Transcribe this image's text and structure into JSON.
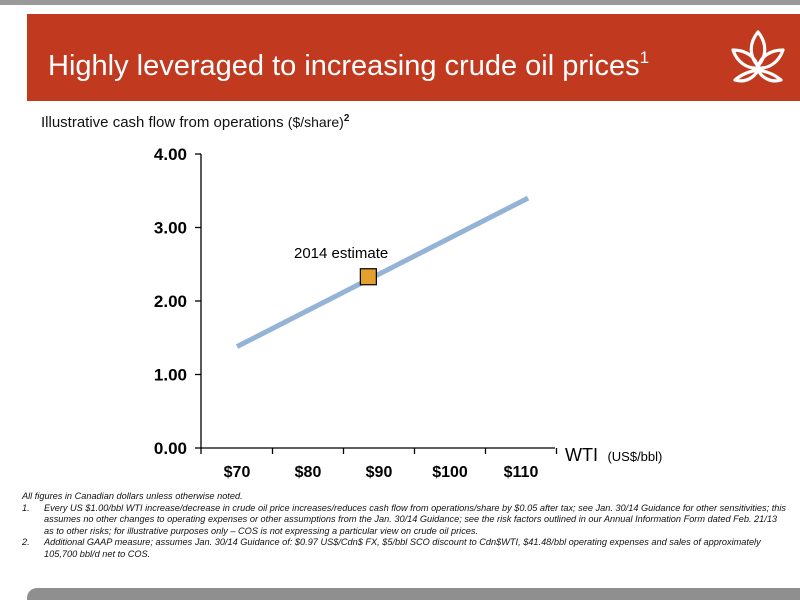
{
  "colors": {
    "banner": "#c1391f",
    "line": "#94b3d6",
    "marker_fill": "#e3a02e",
    "marker_stroke": "#000000",
    "bottom_bar": "#8f8f8f"
  },
  "header": {
    "title": "Highly leveraged to increasing crude oil prices",
    "title_sup": "1",
    "logo_icon": "lotus-flower-logo-icon"
  },
  "subtitle": {
    "text": "Illustrative cash flow from operations ",
    "unit": "($/share)",
    "sup": "2"
  },
  "chart_data": {
    "type": "line",
    "xlabel": "WTI",
    "xlabel_unit": "(US$/bbl)",
    "ylabel": "",
    "categories": [
      "$70",
      "$80",
      "$90",
      "$100",
      "$110"
    ],
    "x_values": [
      70,
      80,
      90,
      100,
      110
    ],
    "ylim": [
      0,
      4
    ],
    "yticks": [
      "0.00",
      "1.00",
      "2.00",
      "3.00",
      "4.00"
    ],
    "ytick_values": [
      0,
      1,
      2,
      3,
      4
    ],
    "grid": false,
    "series": [
      {
        "x": [
          70,
          111
        ],
        "y": [
          1.38,
          3.4
        ]
      }
    ],
    "annotation": {
      "label": "2014 estimate",
      "x": 88.5,
      "y": 2.33
    }
  },
  "notes": {
    "intro": "All figures in Canadian dollars unless otherwise noted.",
    "items": [
      {
        "num": "1.",
        "text": "Every US $1.00/bbl WTI increase/decrease in crude oil price increases/reduces cash flow from operations/share by $0.05 after tax; see Jan. 30/14 Guidance for other sensitivities; this assumes no other changes to operating expenses or other assumptions from the Jan. 30/14 Guidance; see the risk factors outlined in our Annual Information Form dated Feb. 21/13 as to other risks; for illustrative purposes only – COS is not expressing a particular view on crude oil prices."
      },
      {
        "num": "2.",
        "text": "Additional GAAP measure; assumes Jan. 30/14 Guidance of:  $0.97 US$/Cdn$ FX, $5/bbl SCO discount to Cdn$WTI, $41.48/bbl operating expenses and sales of approximately 105,700 bbl/d net to COS."
      }
    ]
  }
}
